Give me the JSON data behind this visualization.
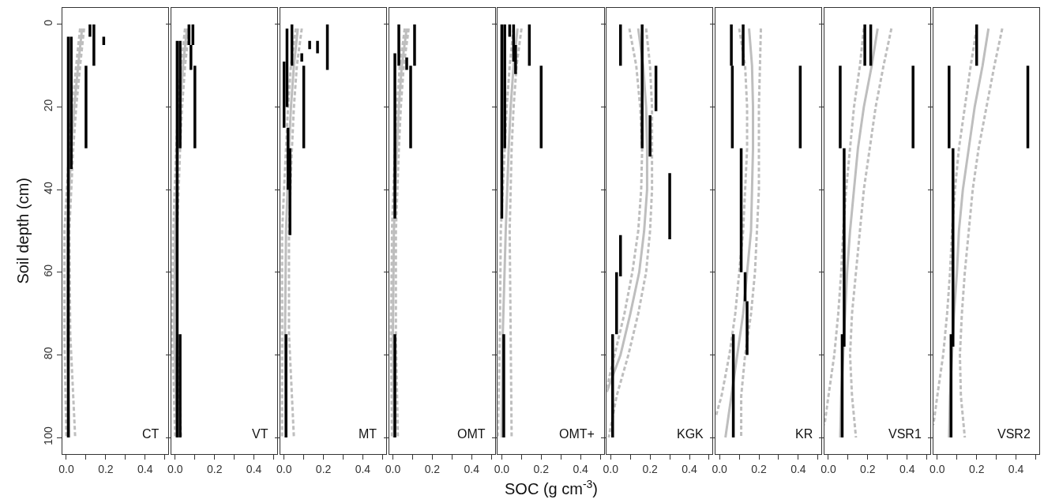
{
  "chart_data": [
    {
      "type": "line",
      "ylabel": "Soil depth (cm)",
      "annotations": [
        "CT"
      ],
      "xlim": [
        -0.02,
        0.518
      ],
      "xticks": [
        {
          "value": 0,
          "label": "0.0"
        },
        {
          "value": 0.1,
          "label": null
        },
        {
          "value": 0.2,
          "label": "0.2"
        },
        {
          "value": 0.3,
          "label": null
        },
        {
          "value": 0.4,
          "label": "0.4"
        },
        {
          "value": 0.5,
          "label": null
        }
      ],
      "ylim": [
        104,
        -4
      ],
      "yticks": [
        0,
        20,
        40,
        60,
        80,
        100
      ],
      "series": [
        {
          "color": "#000000",
          "x": [
            0.01,
            0.01,
            null,
            0.025,
            0.025,
            null,
            0.12,
            0.12,
            null,
            0.14,
            0.14,
            null,
            0.19,
            0.19,
            null,
            0.1,
            0.1
          ],
          "values": [
            3,
            100,
            null,
            3,
            35,
            null,
            0,
            3,
            null,
            0,
            10,
            null,
            3,
            5,
            null,
            10,
            30
          ]
        },
        {
          "color": "#bebebe",
          "x": [
            0.08,
            0.06,
            0.04,
            0.025,
            0.005,
            0.005,
            0.015
          ],
          "values": [
            1,
            10,
            20,
            30,
            50,
            75,
            100
          ]
        },
        {
          "color": "#bebebe",
          "line_style": "dashed",
          "x": [
            0.07,
            0.05,
            0.03,
            0.015,
            -0.01,
            -0.01,
            0.0
          ],
          "values": [
            1,
            10,
            20,
            30,
            50,
            75,
            100
          ]
        },
        {
          "color": "#bebebe",
          "line_style": "dashed",
          "x": [
            0.09,
            0.07,
            0.05,
            0.035,
            0.015,
            0.02,
            0.045
          ],
          "values": [
            1,
            10,
            20,
            30,
            50,
            75,
            100
          ]
        }
      ]
    },
    {
      "type": "line",
      "annotations": [
        "VT"
      ],
      "tick_labels": "x",
      "xlim": [
        -0.02,
        0.518
      ],
      "xticks": [
        {
          "value": 0,
          "label": "0.0"
        },
        {
          "value": 0.1,
          "label": null
        },
        {
          "value": 0.2,
          "label": "0.2"
        },
        {
          "value": 0.3,
          "label": null
        },
        {
          "value": 0.4,
          "label": "0.4"
        },
        {
          "value": 0.5,
          "label": null
        }
      ],
      "ylim": [
        104,
        -4
      ],
      "yticks": [
        0,
        20,
        40,
        60,
        80,
        100
      ],
      "series": [
        {
          "color": "#000000",
          "x": [
            0.01,
            0.01,
            null,
            0.025,
            0.025,
            null,
            0.07,
            0.07,
            null,
            0.09,
            0.09,
            null,
            0.08,
            0.08,
            null,
            0.1,
            0.1
          ],
          "values": [
            4,
            100,
            null,
            4,
            30,
            null,
            0,
            5,
            null,
            0,
            5,
            null,
            5,
            11,
            null,
            10,
            30
          ]
        },
        {
          "color": "#000000",
          "x": [
            0.025,
            0.025
          ],
          "values": [
            75,
            100
          ]
        },
        {
          "color": "#bebebe",
          "x": [
            0.06,
            0.04,
            0.025,
            0.015,
            0.0,
            -0.005,
            0.01
          ],
          "values": [
            1,
            10,
            20,
            30,
            50,
            75,
            100
          ]
        },
        {
          "color": "#bebebe",
          "line_style": "dashed",
          "x": [
            0.05,
            0.03,
            0.015,
            0.005,
            -0.01,
            -0.015,
            0.0
          ],
          "values": [
            1,
            10,
            20,
            30,
            50,
            75,
            100
          ]
        },
        {
          "color": "#bebebe",
          "line_style": "dashed",
          "x": [
            0.07,
            0.05,
            0.035,
            0.025,
            0.01,
            0.01,
            0.03
          ],
          "values": [
            1,
            10,
            20,
            30,
            50,
            75,
            100
          ]
        }
      ]
    },
    {
      "type": "line",
      "annotations": [
        "MT"
      ],
      "tick_labels": "x",
      "xlim": [
        -0.02,
        0.518
      ],
      "xticks": [
        {
          "value": 0,
          "label": "0.0"
        },
        {
          "value": 0.1,
          "label": null
        },
        {
          "value": 0.2,
          "label": "0.2"
        },
        {
          "value": 0.3,
          "label": null
        },
        {
          "value": 0.4,
          "label": "0.4"
        },
        {
          "value": 0.5,
          "label": null
        }
      ],
      "ylim": [
        104,
        -4
      ],
      "yticks": [
        0,
        20,
        40,
        60,
        80,
        100
      ],
      "series": [
        {
          "color": "#000000",
          "x": [
            0.015,
            0.015,
            null,
            0.0,
            0.0,
            null,
            0.04,
            0.04,
            null,
            0.09,
            0.09,
            null,
            0.1,
            0.1,
            null,
            0.13,
            0.13,
            null,
            0.17,
            0.17,
            null,
            0.22,
            0.22,
            null,
            0.03,
            0.03,
            null,
            0.02,
            0.02,
            null,
            0.01,
            0.01
          ],
          "values": [
            1,
            20,
            null,
            9,
            25,
            null,
            0,
            10,
            null,
            7,
            9,
            null,
            10,
            30,
            null,
            4,
            6,
            null,
            4,
            7,
            null,
            0,
            11,
            null,
            30,
            51,
            null,
            25,
            40,
            null,
            75,
            100
          ]
        },
        {
          "color": "#bebebe",
          "x": [
            0.07,
            0.05,
            0.035,
            0.025,
            0.01,
            0.005,
            0.01
          ],
          "values": [
            1,
            10,
            20,
            30,
            50,
            75,
            100
          ]
        },
        {
          "color": "#bebebe",
          "line_style": "dashed",
          "x": [
            0.06,
            0.035,
            0.02,
            0.01,
            -0.01,
            -0.01,
            -0.01
          ],
          "values": [
            1,
            10,
            20,
            30,
            50,
            75,
            100
          ]
        },
        {
          "color": "#bebebe",
          "line_style": "dashed",
          "x": [
            0.09,
            0.065,
            0.05,
            0.04,
            0.025,
            0.025,
            0.05
          ],
          "values": [
            1,
            10,
            20,
            30,
            50,
            75,
            100
          ]
        }
      ]
    },
    {
      "type": "line",
      "annotations": [
        "OMT"
      ],
      "tick_labels": "x",
      "xlim": [
        -0.02,
        0.518
      ],
      "xticks": [
        {
          "value": 0,
          "label": "0.0"
        },
        {
          "value": 0.1,
          "label": null
        },
        {
          "value": 0.2,
          "label": "0.2"
        },
        {
          "value": 0.3,
          "label": null
        },
        {
          "value": 0.4,
          "label": "0.4"
        },
        {
          "value": 0.5,
          "label": null
        }
      ],
      "ylim": [
        104,
        -4
      ],
      "yticks": [
        0,
        20,
        40,
        60,
        80,
        100
      ],
      "series": [
        {
          "color": "#000000",
          "x": [
            0.01,
            0.01,
            null,
            0.03,
            0.03,
            null,
            0.07,
            0.07,
            null,
            0.11,
            0.11,
            null,
            0.09,
            0.09
          ],
          "values": [
            7,
            47,
            null,
            0,
            10,
            null,
            8,
            11,
            null,
            0,
            10,
            null,
            10,
            30
          ]
        },
        {
          "color": "#000000",
          "x": [
            0.01,
            0.01
          ],
          "values": [
            75,
            100
          ]
        },
        {
          "color": "#bebebe",
          "x": [
            0.07,
            0.045,
            0.03,
            0.02,
            0.005,
            0.0,
            0.005
          ],
          "values": [
            1,
            10,
            20,
            30,
            50,
            75,
            100
          ]
        },
        {
          "color": "#bebebe",
          "line_style": "dashed",
          "x": [
            0.06,
            0.035,
            0.02,
            0.01,
            -0.005,
            -0.01,
            -0.005
          ],
          "values": [
            1,
            10,
            20,
            30,
            50,
            75,
            100
          ]
        },
        {
          "color": "#bebebe",
          "line_style": "dashed",
          "x": [
            0.08,
            0.055,
            0.04,
            0.03,
            0.015,
            0.015,
            0.025
          ],
          "values": [
            1,
            10,
            20,
            30,
            50,
            75,
            100
          ]
        }
      ]
    },
    {
      "type": "line",
      "xlabel": "SOC (g cm$^{-3}$)",
      "annotations": [
        "OMT+"
      ],
      "tick_labels": "x",
      "xlim": [
        -0.02,
        0.518
      ],
      "xticks": [
        {
          "value": 0,
          "label": "0.0"
        },
        {
          "value": 0.1,
          "label": null
        },
        {
          "value": 0.2,
          "label": "0.2"
        },
        {
          "value": 0.3,
          "label": null
        },
        {
          "value": 0.4,
          "label": "0.4"
        },
        {
          "value": 0.5,
          "label": null
        }
      ],
      "ylim": [
        104,
        -4
      ],
      "yticks": [
        0,
        20,
        40,
        60,
        80,
        100
      ],
      "series": [
        {
          "color": "#000000",
          "x": [
            0.0,
            0.0,
            null,
            0.015,
            0.015,
            null,
            0.04,
            0.04,
            null,
            0.06,
            0.06,
            null,
            0.07,
            0.07,
            null,
            0.14,
            0.14,
            null,
            0.2,
            0.2,
            null,
            0.01,
            0.01
          ],
          "values": [
            0,
            47,
            null,
            0,
            30,
            null,
            0,
            3,
            null,
            0,
            9,
            null,
            5,
            12,
            null,
            0,
            10,
            null,
            10,
            30,
            null,
            75,
            100
          ]
        },
        {
          "color": "#bebebe",
          "x": [
            0.08,
            0.06,
            0.045,
            0.035,
            0.02,
            0.005,
            0.0
          ],
          "values": [
            1,
            10,
            20,
            30,
            50,
            75,
            100
          ]
        },
        {
          "color": "#bebebe",
          "line_style": "dashed",
          "x": [
            0.06,
            0.04,
            0.025,
            0.015,
            -0.005,
            -0.01,
            -0.02
          ],
          "values": [
            1,
            10,
            20,
            30,
            50,
            75,
            100
          ]
        },
        {
          "color": "#bebebe",
          "line_style": "dashed",
          "x": [
            0.1,
            0.075,
            0.06,
            0.05,
            0.04,
            0.045,
            0.05
          ],
          "values": [
            1,
            10,
            20,
            30,
            50,
            75,
            100
          ]
        }
      ]
    },
    {
      "type": "line",
      "annotations": [
        "KGK"
      ],
      "tick_labels": "x",
      "xlim": [
        -0.02,
        0.518
      ],
      "xticks": [
        {
          "value": 0,
          "label": "0.0"
        },
        {
          "value": 0.1,
          "label": null
        },
        {
          "value": 0.2,
          "label": "0.2"
        },
        {
          "value": 0.3,
          "label": null
        },
        {
          "value": 0.4,
          "label": "0.4"
        },
        {
          "value": 0.5,
          "label": null
        }
      ],
      "ylim": [
        104,
        -4
      ],
      "yticks": [
        0,
        20,
        40,
        60,
        80,
        100
      ],
      "series": [
        {
          "color": "#000000",
          "x": [
            0.05,
            0.05,
            null,
            0.16,
            0.16,
            null,
            0.23,
            0.23,
            null,
            0.2,
            0.2,
            null,
            0.3,
            0.3,
            null,
            0.03,
            0.03,
            null,
            0.01,
            0.01
          ],
          "values": [
            0,
            10,
            null,
            0,
            30,
            null,
            10,
            21,
            null,
            22,
            32,
            null,
            36,
            52,
            null,
            60,
            75,
            null,
            75,
            100
          ]
        },
        {
          "color": "#000000",
          "x": [
            0.05,
            0.05
          ],
          "values": [
            51,
            61
          ]
        },
        {
          "color": "#bebebe",
          "x": [
            0.14,
            0.165,
            0.18,
            0.185,
            0.185,
            0.17,
            0.145,
            0.1,
            0.05,
            -0.02
          ],
          "values": [
            1,
            10,
            20,
            30,
            40,
            50,
            60,
            70,
            80,
            89
          ]
        },
        {
          "color": "#bebebe",
          "line_style": "dashed",
          "x": [
            0.095,
            0.13,
            0.15,
            0.16,
            0.155,
            0.14,
            0.11,
            0.07,
            0.02,
            -0.02
          ],
          "values": [
            1,
            10,
            20,
            30,
            40,
            50,
            60,
            70,
            80,
            88
          ]
        },
        {
          "color": "#bebebe",
          "line_style": "dashed",
          "x": [
            0.18,
            0.2,
            0.21,
            0.21,
            0.21,
            0.2,
            0.18,
            0.14,
            0.09,
            0.03,
            -0.01
          ],
          "values": [
            1,
            10,
            20,
            30,
            40,
            50,
            60,
            70,
            80,
            90,
            100
          ]
        }
      ]
    },
    {
      "type": "line",
      "annotations": [
        "KR"
      ],
      "tick_labels": "x",
      "xlim": [
        -0.02,
        0.518
      ],
      "xticks": [
        {
          "value": 0,
          "label": "0.0"
        },
        {
          "value": 0.1,
          "label": null
        },
        {
          "value": 0.2,
          "label": "0.2"
        },
        {
          "value": 0.3,
          "label": null
        },
        {
          "value": 0.4,
          "label": "0.4"
        },
        {
          "value": 0.5,
          "label": null
        }
      ],
      "ylim": [
        104,
        -4
      ],
      "yticks": [
        0,
        20,
        40,
        60,
        80,
        100
      ],
      "series": [
        {
          "color": "#000000",
          "x": [
            0.06,
            0.06,
            null,
            0.12,
            0.12,
            null,
            0.065,
            0.065,
            null,
            0.41,
            0.41,
            null,
            0.11,
            0.11,
            null,
            0.13,
            0.13,
            null,
            0.14,
            0.14,
            null,
            0.07,
            0.07
          ],
          "values": [
            0,
            10,
            null,
            0,
            10,
            null,
            10,
            30,
            null,
            10,
            30,
            null,
            30,
            60,
            null,
            60,
            67,
            null,
            67,
            80,
            null,
            75,
            100
          ]
        },
        {
          "color": "#bebebe",
          "x": [
            0.15,
            0.165,
            0.17,
            0.17,
            0.165,
            0.16,
            0.14,
            0.12,
            0.09,
            0.06,
            0.03
          ],
          "values": [
            1,
            10,
            20,
            30,
            40,
            50,
            60,
            70,
            80,
            90,
            100
          ]
        },
        {
          "color": "#bebebe",
          "line_style": "dashed",
          "x": [
            0.1,
            0.13,
            0.14,
            0.14,
            0.13,
            0.12,
            0.1,
            0.08,
            0.05,
            0.01,
            -0.02
          ],
          "values": [
            1,
            10,
            20,
            30,
            40,
            50,
            60,
            70,
            80,
            90,
            95
          ]
        },
        {
          "color": "#bebebe",
          "line_style": "dashed",
          "x": [
            0.21,
            0.2,
            0.2,
            0.18,
            0.16,
            0.13,
            0.11,
            0.11
          ],
          "values": [
            1,
            20,
            40,
            60,
            70,
            80,
            90,
            100
          ]
        }
      ]
    },
    {
      "type": "line",
      "annotations": [
        "VSR1"
      ],
      "tick_labels": "x",
      "xlim": [
        -0.02,
        0.518
      ],
      "xticks": [
        {
          "value": 0,
          "label": "0.0"
        },
        {
          "value": 0.1,
          "label": null
        },
        {
          "value": 0.2,
          "label": "0.2"
        },
        {
          "value": 0.3,
          "label": null
        },
        {
          "value": 0.4,
          "label": "0.4"
        },
        {
          "value": 0.5,
          "label": null
        }
      ],
      "ylim": [
        104,
        -4
      ],
      "yticks": [
        0,
        20,
        40,
        60,
        80,
        100
      ],
      "series": [
        {
          "color": "#000000",
          "x": [
            0.185,
            0.185,
            null,
            0.215,
            0.215,
            null,
            0.06,
            0.06,
            null,
            0.43,
            0.43,
            null,
            0.08,
            0.08,
            null,
            0.07,
            0.07
          ],
          "values": [
            0,
            10,
            null,
            0,
            10,
            null,
            10,
            30,
            null,
            10,
            30,
            null,
            30,
            78,
            null,
            75,
            100
          ]
        },
        {
          "color": "#bebebe",
          "x": [
            0.25,
            0.22,
            0.18,
            0.15,
            0.13,
            0.11,
            0.095,
            0.085,
            0.075,
            0.065,
            0.06
          ],
          "values": [
            1,
            10,
            20,
            30,
            40,
            50,
            60,
            70,
            80,
            90,
            100
          ]
        },
        {
          "color": "#bebebe",
          "line_style": "dashed",
          "x": [
            0.18,
            0.16,
            0.13,
            0.11,
            0.09,
            0.075,
            0.065,
            0.05,
            0.03,
            0.0,
            -0.02
          ],
          "values": [
            1,
            10,
            20,
            30,
            40,
            50,
            60,
            70,
            80,
            90,
            97
          ]
        },
        {
          "color": "#bebebe",
          "line_style": "dashed",
          "x": [
            0.32,
            0.28,
            0.24,
            0.21,
            0.18,
            0.16,
            0.14,
            0.12,
            0.11,
            0.12,
            0.14
          ],
          "values": [
            1,
            10,
            20,
            30,
            40,
            50,
            60,
            70,
            80,
            90,
            100
          ]
        }
      ]
    },
    {
      "type": "line",
      "annotations": [
        "VSR2"
      ],
      "tick_labels": "x",
      "xlim": [
        -0.02,
        0.518
      ],
      "xticks": [
        {
          "value": 0,
          "label": "0.0"
        },
        {
          "value": 0.1,
          "label": null
        },
        {
          "value": 0.2,
          "label": "0.2"
        },
        {
          "value": 0.3,
          "label": null
        },
        {
          "value": 0.4,
          "label": "0.4"
        },
        {
          "value": 0.5,
          "label": null
        }
      ],
      "ylim": [
        104,
        -4
      ],
      "yticks": [
        0,
        20,
        40,
        60,
        80,
        100
      ],
      "series": [
        {
          "color": "#000000",
          "x": [
            0.2,
            0.2,
            null,
            0.06,
            0.06,
            null,
            0.46,
            0.46,
            null,
            0.08,
            0.08,
            null,
            0.07,
            0.07
          ],
          "values": [
            0,
            10,
            null,
            10,
            30,
            null,
            10,
            30,
            null,
            30,
            78,
            null,
            75,
            100
          ]
        },
        {
          "color": "#bebebe",
          "x": [
            0.26,
            0.23,
            0.19,
            0.16,
            0.13,
            0.11,
            0.1,
            0.085,
            0.075,
            0.065,
            0.06
          ],
          "values": [
            1,
            10,
            20,
            30,
            40,
            50,
            60,
            70,
            80,
            90,
            100
          ]
        },
        {
          "color": "#bebebe",
          "line_style": "dashed",
          "x": [
            0.2,
            0.17,
            0.14,
            0.11,
            0.09,
            0.075,
            0.065,
            0.05,
            0.03,
            0.0,
            -0.02
          ],
          "values": [
            1,
            10,
            20,
            30,
            40,
            50,
            60,
            70,
            80,
            90,
            97
          ]
        },
        {
          "color": "#bebebe",
          "line_style": "dashed",
          "x": [
            0.33,
            0.29,
            0.25,
            0.21,
            0.18,
            0.16,
            0.14,
            0.125,
            0.115,
            0.12,
            0.14
          ],
          "values": [
            1,
            10,
            20,
            30,
            40,
            50,
            60,
            70,
            80,
            90,
            100
          ]
        }
      ]
    }
  ]
}
